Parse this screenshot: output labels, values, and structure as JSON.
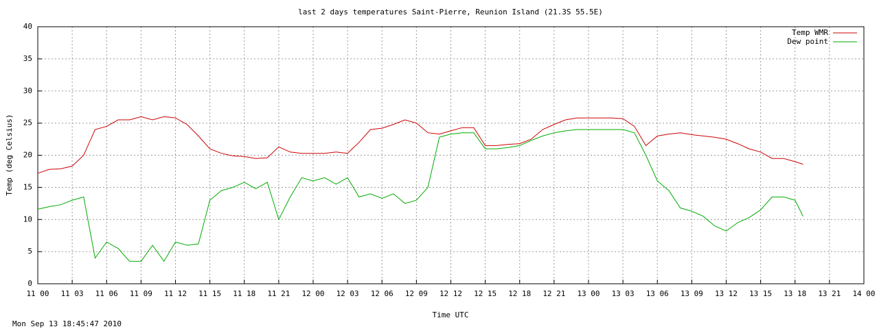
{
  "chart_data": {
    "type": "line",
    "title": "last 2 days temperatures Saint-Pierre, Reunion Island (21.3S 55.5E)",
    "y_label": "Temp (deg Celsius)",
    "x_label": "Time UTC",
    "timestamp": "Mon Sep 13 18:45:47 2010",
    "x": [
      0,
      1,
      2,
      3,
      4,
      5,
      6,
      7,
      8,
      9,
      10,
      11,
      12,
      13,
      14,
      15,
      16,
      17,
      18,
      19,
      20,
      21,
      22,
      23,
      24,
      25,
      26,
      27,
      28,
      29,
      30,
      31,
      32,
      33,
      34,
      35,
      36,
      37,
      38,
      39,
      40,
      41,
      42,
      43,
      44,
      45,
      46,
      47,
      48,
      49,
      50,
      51,
      52,
      53,
      54,
      55,
      56,
      57,
      58,
      59,
      60,
      61,
      62,
      63,
      64,
      65,
      66,
      66.7
    ],
    "series": [
      {
        "name": "Temp WMR",
        "color": "#cc0000",
        "values": [
          17.2,
          17.8,
          17.9,
          18.3,
          20.0,
          24.0,
          24.5,
          25.5,
          25.5,
          26.0,
          25.5,
          26.0,
          25.8,
          24.8,
          23.0,
          21.0,
          20.3,
          19.9,
          19.8,
          19.5,
          19.6,
          21.3,
          20.5,
          20.3,
          20.3,
          20.3,
          20.5,
          20.3,
          22.0,
          24.0,
          24.2,
          24.8,
          25.5,
          25.0,
          23.5,
          23.3,
          23.8,
          24.3,
          24.3,
          21.5,
          21.5,
          21.7,
          21.8,
          22.5,
          24.0,
          24.8,
          25.5,
          25.8,
          25.8,
          25.8,
          25.8,
          25.7,
          24.5,
          21.5,
          23.0,
          23.3,
          23.5,
          23.2,
          23.0,
          22.8,
          22.5,
          21.8,
          21.0,
          20.5,
          19.5,
          19.5,
          19.0,
          18.6
        ]
      },
      {
        "name": "Dew point",
        "color": "#00aa00",
        "values": [
          11.6,
          12.0,
          12.3,
          13.0,
          13.5,
          4.0,
          6.5,
          5.5,
          3.5,
          3.5,
          6.0,
          3.5,
          6.5,
          6.0,
          6.2,
          13.0,
          14.5,
          15.0,
          15.8,
          14.8,
          15.8,
          10.0,
          13.5,
          16.5,
          16.0,
          16.5,
          15.5,
          16.5,
          13.5,
          14.0,
          13.3,
          14.0,
          12.5,
          13.0,
          15.0,
          22.8,
          23.3,
          23.5,
          23.5,
          21.0,
          21.0,
          21.2,
          21.5,
          22.3,
          23.0,
          23.5,
          23.8,
          24.0,
          24.0,
          24.0,
          24.0,
          24.0,
          23.5,
          20.0,
          16.0,
          14.5,
          11.8,
          11.3,
          10.5,
          9.0,
          8.2,
          9.5,
          10.3,
          11.5,
          13.5,
          13.5,
          13.0,
          10.5
        ]
      }
    ],
    "xlim": [
      0,
      72
    ],
    "xticks": [
      {
        "value": 0,
        "label": "11 00"
      },
      {
        "value": 3,
        "label": "11 03"
      },
      {
        "value": 6,
        "label": "11 06"
      },
      {
        "value": 9,
        "label": "11 09"
      },
      {
        "value": 12,
        "label": "11 12"
      },
      {
        "value": 15,
        "label": "11 15"
      },
      {
        "value": 18,
        "label": "11 18"
      },
      {
        "value": 21,
        "label": "11 21"
      },
      {
        "value": 24,
        "label": "12 00"
      },
      {
        "value": 27,
        "label": "12 03"
      },
      {
        "value": 30,
        "label": "12 06"
      },
      {
        "value": 33,
        "label": "12 09"
      },
      {
        "value": 36,
        "label": "12 12"
      },
      {
        "value": 39,
        "label": "12 15"
      },
      {
        "value": 42,
        "label": "12 18"
      },
      {
        "value": 45,
        "label": "12 21"
      },
      {
        "value": 48,
        "label": "13 00"
      },
      {
        "value": 51,
        "label": "13 03"
      },
      {
        "value": 54,
        "label": "13 06"
      },
      {
        "value": 57,
        "label": "13 09"
      },
      {
        "value": 60,
        "label": "13 12"
      },
      {
        "value": 63,
        "label": "13 15"
      },
      {
        "value": 66,
        "label": "13 18"
      },
      {
        "value": 69,
        "label": "13 21"
      },
      {
        "value": 72,
        "label": "14 00"
      }
    ],
    "ylim": [
      0,
      40
    ],
    "yticks": [
      0,
      5,
      10,
      15,
      20,
      25,
      30,
      35,
      40
    ],
    "grid": true,
    "legend": "top-right"
  }
}
